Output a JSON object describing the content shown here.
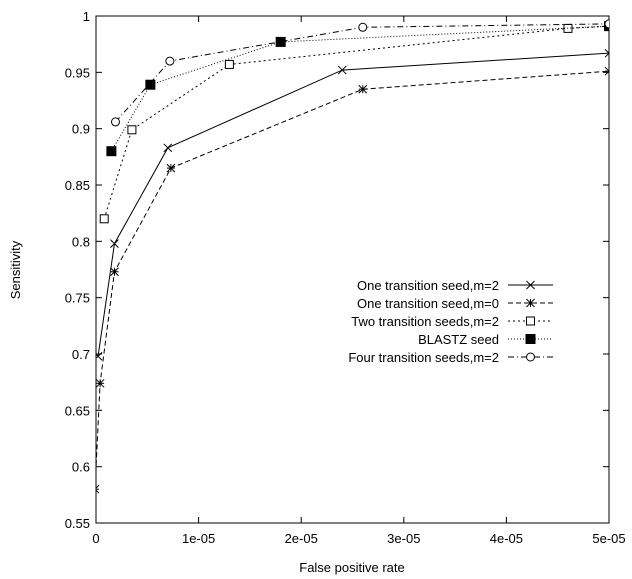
{
  "chart_data": {
    "type": "line",
    "title": "",
    "xlabel": "False positive rate",
    "ylabel": "Sensitivity",
    "xlim": [
      0,
      5e-05
    ],
    "ylim": [
      0.55,
      1
    ],
    "x_tick_labels": [
      "0",
      "1e-05",
      "2e-05",
      "3e-05",
      "4e-05",
      "5e-05"
    ],
    "y_tick_labels": [
      "0.55",
      "0.6",
      "0.65",
      "0.7",
      "0.75",
      "0.8",
      "0.85",
      "0.9",
      "0.95",
      "1"
    ],
    "grid": false,
    "legend_position": "right",
    "series": [
      {
        "name": "One transition seed,m=2",
        "line_style": "solid",
        "marker": "x",
        "x": [
          2e-07,
          1.8e-06,
          7e-06,
          2.4e-05,
          5e-05
        ],
        "y": [
          0.698,
          0.798,
          0.883,
          0.952,
          0.967
        ]
      },
      {
        "name": "One transition seed,m=0",
        "line_style": "dashed",
        "marker": "star",
        "x": [
          -1e-07,
          4e-07,
          1.8e-06,
          7.3e-06,
          2.6e-05,
          5e-05
        ],
        "y": [
          0.58,
          0.674,
          0.773,
          0.865,
          0.935,
          0.951
        ]
      },
      {
        "name": "Two transition seeds,m=2",
        "line_style": "dotted",
        "marker": "open-square",
        "x": [
          8e-07,
          3.5e-06,
          1.3e-05,
          4.6e-05,
          5e-05
        ],
        "y": [
          0.82,
          0.899,
          0.957,
          0.989,
          0.991
        ]
      },
      {
        "name": "BLASTZ seed",
        "line_style": "fine-dotted",
        "marker": "filled-square",
        "x": [
          1.5e-06,
          5.3e-06,
          1.8e-05,
          5e-05
        ],
        "y": [
          0.88,
          0.939,
          0.977,
          0.991
        ]
      },
      {
        "name": "Four transition seeds,m=2",
        "line_style": "dash-dot",
        "marker": "open-circle",
        "x": [
          1.9e-06,
          7.2e-06,
          2.6e-05,
          5e-05
        ],
        "y": [
          0.906,
          0.96,
          0.99,
          0.993
        ]
      }
    ]
  }
}
